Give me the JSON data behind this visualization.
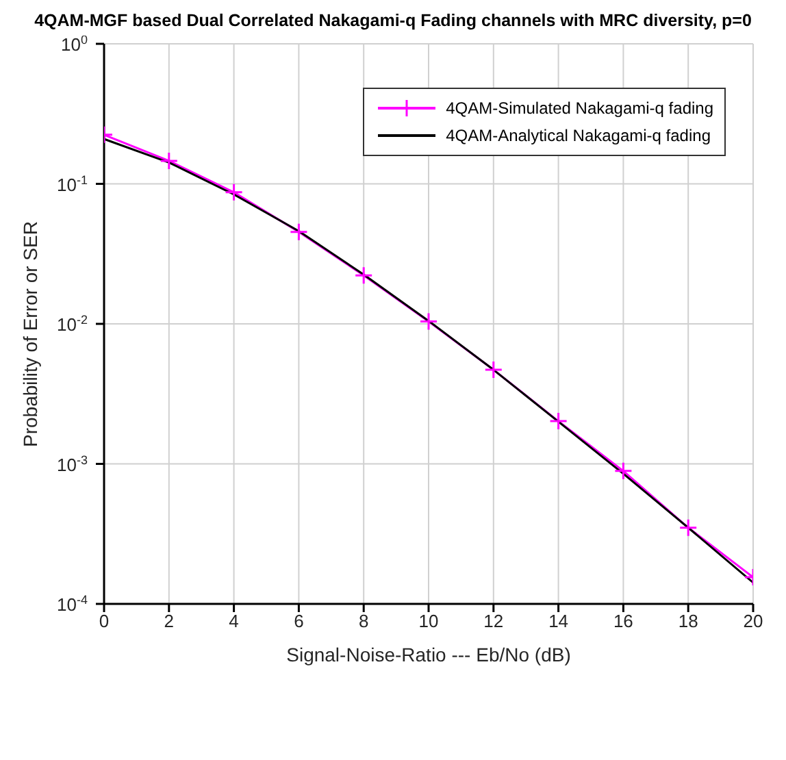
{
  "chart_data": {
    "type": "line",
    "title": "4QAM-MGF based Dual Correlated Nakagami-q Fading channels with MRC diversity, p=0",
    "xlabel": "Signal-Noise-Ratio --- Eb/No (dB)",
    "ylabel": "Probability of Error or SER",
    "x": [
      0,
      2,
      4,
      6,
      8,
      10,
      12,
      14,
      16,
      18,
      20
    ],
    "series": [
      {
        "name": "4QAM-Simulated Nakagami-q fading",
        "color": "#ff00ff",
        "marker": "cross",
        "values": [
          0.224,
          0.146,
          0.087,
          0.0454,
          0.0222,
          0.0104,
          0.0047,
          0.00202,
          0.00089,
          0.00035,
          0.000155
        ]
      },
      {
        "name": "4QAM-Analytical Nakagami-q fading",
        "color": "#000000",
        "marker": "none",
        "values": [
          0.209,
          0.142,
          0.084,
          0.046,
          0.0225,
          0.0105,
          0.0047,
          0.002,
          0.00085,
          0.00035,
          0.000142
        ]
      }
    ],
    "xlim": [
      0,
      20
    ],
    "xticks": [
      0,
      2,
      4,
      6,
      8,
      10,
      12,
      14,
      16,
      18,
      20
    ],
    "ylim": [
      0.0001,
      1
    ],
    "yticks": [
      {
        "value": 0.0001,
        "label": "10$^{-4}$"
      },
      {
        "value": 0.001,
        "label": "10$^{-3}$"
      },
      {
        "value": 0.01,
        "label": "10$^{-2}$"
      },
      {
        "value": 0.1,
        "label": "10$^{-1}$"
      },
      {
        "value": 1,
        "label": "10$^{0}$"
      }
    ],
    "log": "y",
    "grid": true,
    "legend": "top right",
    "line_style": "solid"
  }
}
